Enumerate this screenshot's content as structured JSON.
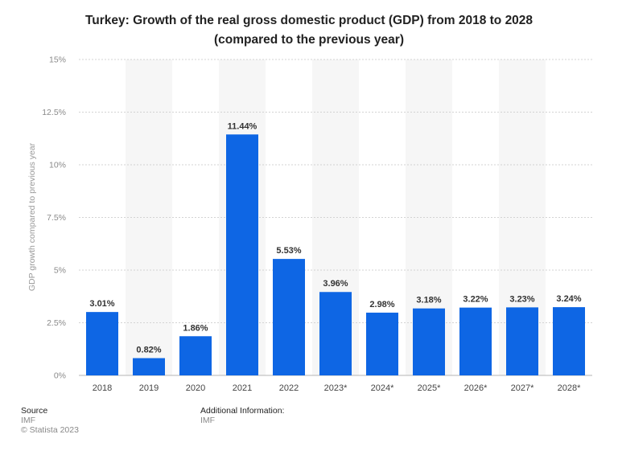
{
  "chart_data": {
    "type": "bar",
    "title": "Turkey: Growth of the real gross domestic product (GDP) from 2018 to 2028",
    "subtitle": "(compared to the previous year)",
    "ylabel": "GDP growth compared to previous year",
    "xlabel": "",
    "categories": [
      "2018",
      "2019",
      "2020",
      "2021",
      "2022",
      "2023*",
      "2024*",
      "2025*",
      "2026*",
      "2027*",
      "2028*"
    ],
    "values": [
      3.01,
      0.82,
      1.86,
      11.44,
      5.53,
      3.96,
      2.98,
      3.18,
      3.22,
      3.23,
      3.24
    ],
    "value_labels": [
      "3.01%",
      "0.82%",
      "1.86%",
      "11.44%",
      "5.53%",
      "3.96%",
      "2.98%",
      "3.18%",
      "3.22%",
      "3.23%",
      "3.24%"
    ],
    "ylim": [
      0,
      15
    ],
    "yticks": [
      0,
      2.5,
      5,
      7.5,
      10,
      12.5,
      15
    ],
    "ytick_labels": [
      "0%",
      "2.5%",
      "5%",
      "7.5%",
      "10%",
      "12.5%",
      "15%"
    ],
    "grid": true,
    "bar_color": "#0e66e4"
  },
  "footer": {
    "source_label": "Source",
    "source_value": "IMF",
    "copyright": "© Statista 2023",
    "additional_label": "Additional Information:",
    "additional_value": "IMF"
  }
}
